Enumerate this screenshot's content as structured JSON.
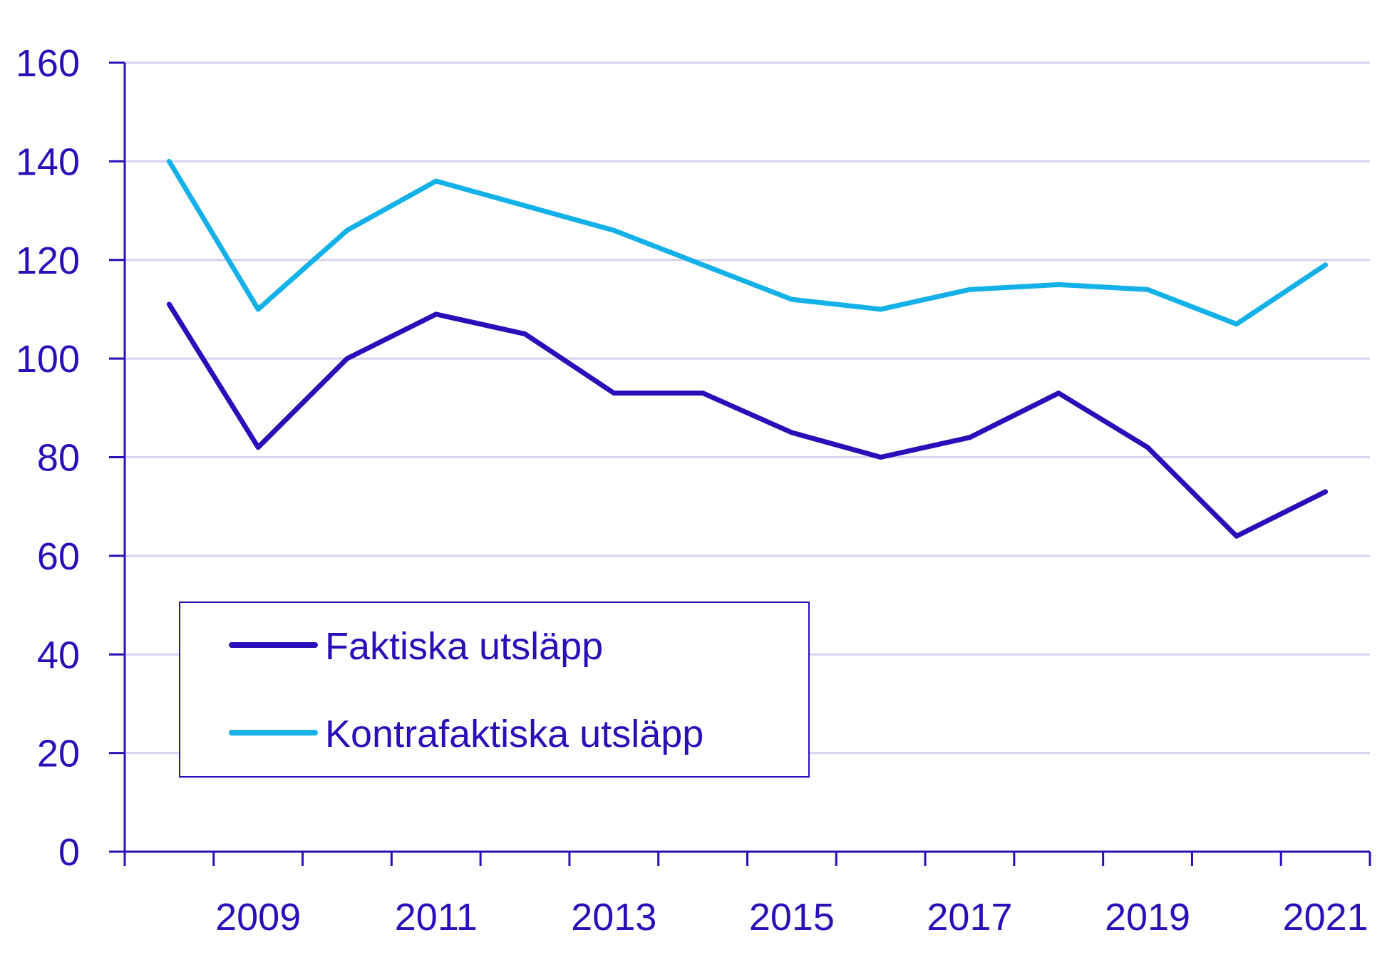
{
  "chart_data": {
    "type": "line",
    "x": [
      2008,
      2009,
      2010,
      2011,
      2012,
      2013,
      2014,
      2015,
      2016,
      2017,
      2018,
      2019,
      2020,
      2021
    ],
    "x_tick_labels": [
      "2009",
      "2011",
      "2013",
      "2015",
      "2017",
      "2019",
      "2021"
    ],
    "x_tick_label_years": [
      2009,
      2011,
      2013,
      2015,
      2017,
      2019,
      2021
    ],
    "y_ticks": [
      0,
      20,
      40,
      60,
      80,
      100,
      120,
      140,
      160
    ],
    "ylim": [
      0,
      160
    ],
    "grid": "horizontal",
    "legend_position": "bottom-left",
    "series": [
      {
        "name": "Faktiska utsläpp",
        "color": "#2a0fb9",
        "values": [
          111,
          82,
          100,
          109,
          105,
          93,
          93,
          85,
          80,
          84,
          93,
          82,
          64,
          73
        ]
      },
      {
        "name": "Kontrafaktiska utsläpp",
        "color": "#14b1e8",
        "values": [
          140,
          110,
          126,
          136,
          131,
          126,
          119,
          112,
          110,
          114,
          115,
          114,
          107,
          119
        ]
      }
    ]
  }
}
